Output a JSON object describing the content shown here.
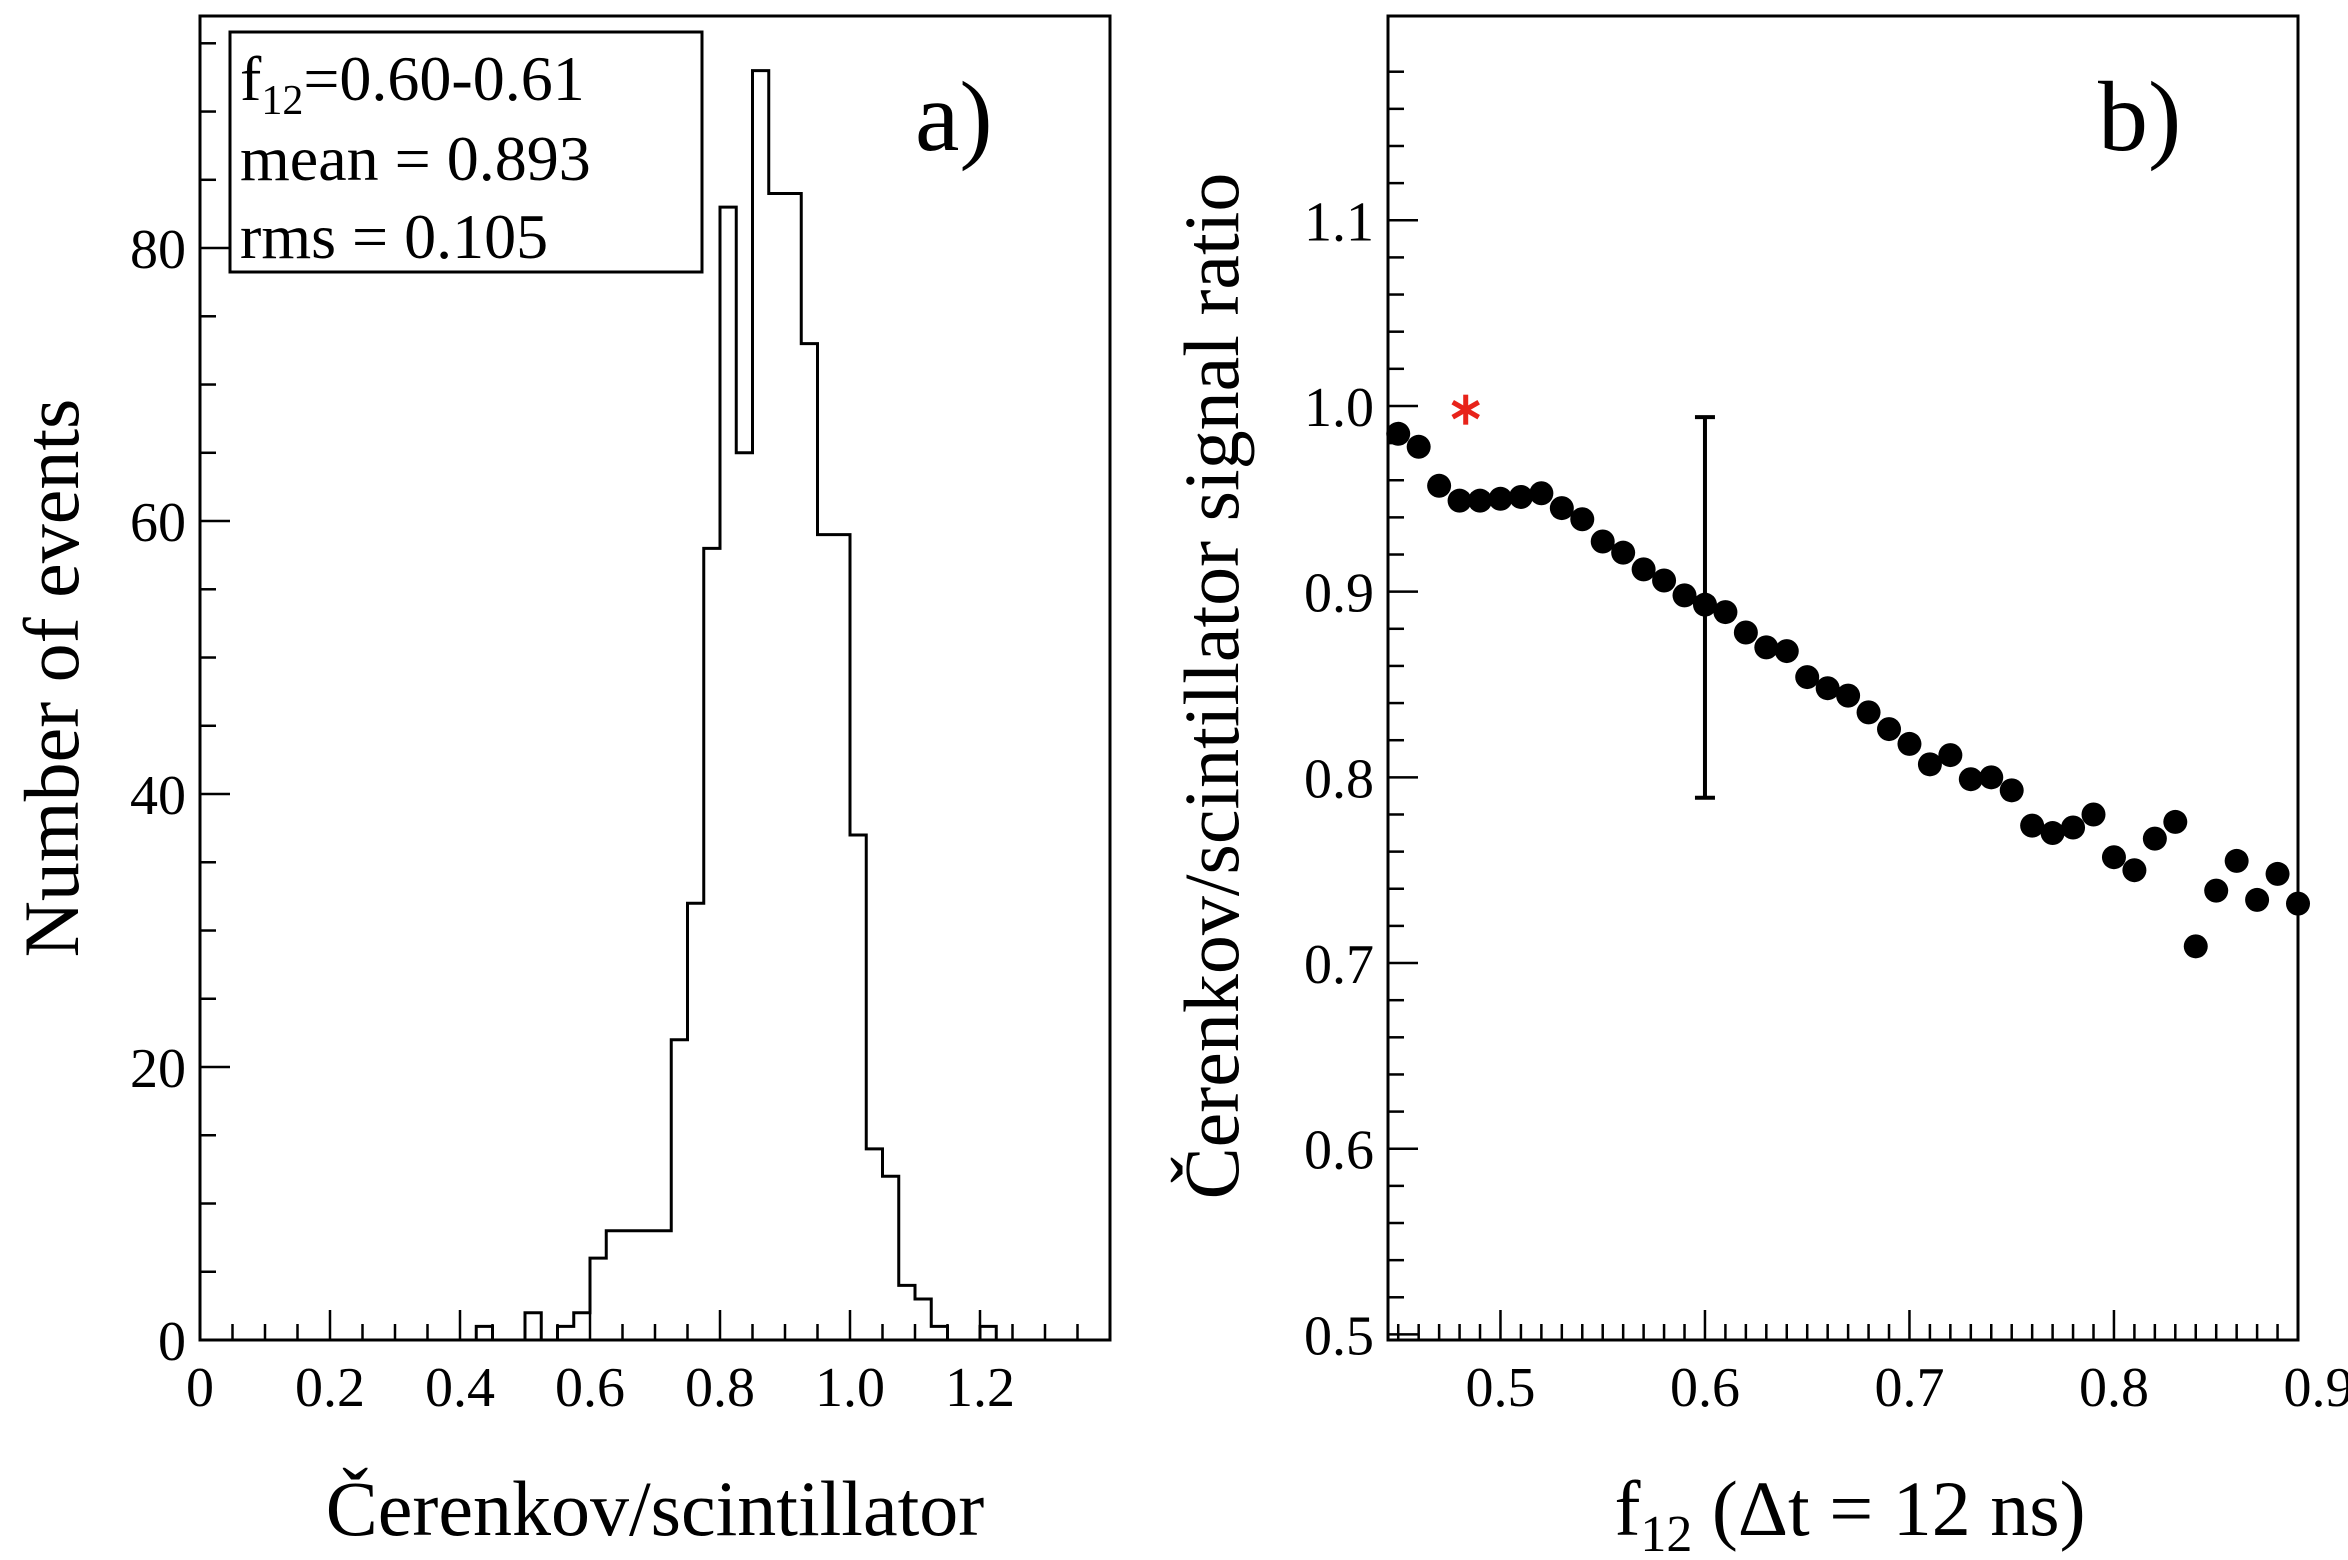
{
  "chart_data": [
    {
      "type": "histogram",
      "panel_label": "a)",
      "xlabel": "Čerenkov/scintillator",
      "ylabel": "Number of events",
      "xlim": [
        0,
        1.4
      ],
      "ylim": [
        0,
        97
      ],
      "xticks": [
        0,
        0.2,
        0.4,
        0.6,
        0.8,
        1.0,
        1.2
      ],
      "xtick_labels": [
        "0",
        "0.2",
        "0.4",
        "0.6",
        "0.8",
        "1.0",
        "1.2"
      ],
      "yticks": [
        0,
        20,
        40,
        60,
        80
      ],
      "ytick_labels": [
        "0",
        "20",
        "40",
        "60",
        "80"
      ],
      "bin_width": 0.025,
      "bins": [
        {
          "x0": 0.425,
          "count": 1
        },
        {
          "x0": 0.45,
          "count": 0
        },
        {
          "x0": 0.475,
          "count": 0
        },
        {
          "x0": 0.5,
          "count": 2
        },
        {
          "x0": 0.525,
          "count": 0
        },
        {
          "x0": 0.55,
          "count": 1
        },
        {
          "x0": 0.575,
          "count": 2
        },
        {
          "x0": 0.6,
          "count": 6
        },
        {
          "x0": 0.625,
          "count": 8
        },
        {
          "x0": 0.65,
          "count": 8
        },
        {
          "x0": 0.675,
          "count": 8
        },
        {
          "x0": 0.7,
          "count": 8
        },
        {
          "x0": 0.725,
          "count": 22
        },
        {
          "x0": 0.75,
          "count": 32
        },
        {
          "x0": 0.775,
          "count": 58
        },
        {
          "x0": 0.8,
          "count": 83
        },
        {
          "x0": 0.825,
          "count": 65
        },
        {
          "x0": 0.85,
          "count": 93
        },
        {
          "x0": 0.875,
          "count": 84
        },
        {
          "x0": 0.9,
          "count": 84
        },
        {
          "x0": 0.925,
          "count": 73
        },
        {
          "x0": 0.95,
          "count": 59
        },
        {
          "x0": 0.975,
          "count": 59
        },
        {
          "x0": 1.0,
          "count": 37
        },
        {
          "x0": 1.025,
          "count": 14
        },
        {
          "x0": 1.05,
          "count": 12
        },
        {
          "x0": 1.075,
          "count": 4
        },
        {
          "x0": 1.1,
          "count": 3
        },
        {
          "x0": 1.125,
          "count": 1
        },
        {
          "x0": 1.15,
          "count": 0
        },
        {
          "x0": 1.175,
          "count": 0
        },
        {
          "x0": 1.2,
          "count": 1
        }
      ],
      "stats_box": {
        "f_label": "f",
        "f_sub": "12",
        "f_value": "=0.60-0.61",
        "mean": "mean = 0.893",
        "rms": "rms = 0.105"
      }
    },
    {
      "type": "scatter",
      "panel_label": "b)",
      "ylabel": "Čerenkov/scintillator signal ratio",
      "xlabel_main": "f",
      "xlabel_sub": "12",
      "xlabel_rest": " (Δt = 12 ns)",
      "xlim": [
        0.445,
        0.89
      ],
      "ylim": [
        0.497,
        1.21
      ],
      "xticks": [
        0.5,
        0.6,
        0.7,
        0.8,
        0.9
      ],
      "xtick_labels": [
        "0.5",
        "0.6",
        "0.7",
        "0.8",
        "0.9"
      ],
      "yticks": [
        0.5,
        0.6,
        0.7,
        0.8,
        0.9,
        1.0,
        1.1
      ],
      "ytick_labels": [
        "0.5",
        "0.6",
        "0.7",
        "0.8",
        "0.9",
        "1.0",
        "1.1"
      ],
      "points": [
        {
          "x": 0.45,
          "y": 0.985
        },
        {
          "x": 0.46,
          "y": 0.978
        },
        {
          "x": 0.47,
          "y": 0.957
        },
        {
          "x": 0.48,
          "y": 0.949
        },
        {
          "x": 0.49,
          "y": 0.949
        },
        {
          "x": 0.5,
          "y": 0.95
        },
        {
          "x": 0.51,
          "y": 0.951
        },
        {
          "x": 0.52,
          "y": 0.953
        },
        {
          "x": 0.53,
          "y": 0.945
        },
        {
          "x": 0.54,
          "y": 0.939
        },
        {
          "x": 0.55,
          "y": 0.927
        },
        {
          "x": 0.56,
          "y": 0.921
        },
        {
          "x": 0.57,
          "y": 0.912
        },
        {
          "x": 0.58,
          "y": 0.906
        },
        {
          "x": 0.59,
          "y": 0.898
        },
        {
          "x": 0.6,
          "y": 0.893
        },
        {
          "x": 0.61,
          "y": 0.889
        },
        {
          "x": 0.62,
          "y": 0.878
        },
        {
          "x": 0.63,
          "y": 0.87
        },
        {
          "x": 0.64,
          "y": 0.868
        },
        {
          "x": 0.65,
          "y": 0.854
        },
        {
          "x": 0.66,
          "y": 0.848
        },
        {
          "x": 0.67,
          "y": 0.844
        },
        {
          "x": 0.68,
          "y": 0.835
        },
        {
          "x": 0.69,
          "y": 0.826
        },
        {
          "x": 0.7,
          "y": 0.818
        },
        {
          "x": 0.71,
          "y": 0.807
        },
        {
          "x": 0.72,
          "y": 0.812
        },
        {
          "x": 0.73,
          "y": 0.799
        },
        {
          "x": 0.74,
          "y": 0.8
        },
        {
          "x": 0.75,
          "y": 0.793
        },
        {
          "x": 0.76,
          "y": 0.774
        },
        {
          "x": 0.77,
          "y": 0.77
        },
        {
          "x": 0.78,
          "y": 0.773
        },
        {
          "x": 0.79,
          "y": 0.78
        },
        {
          "x": 0.8,
          "y": 0.757
        },
        {
          "x": 0.81,
          "y": 0.75
        },
        {
          "x": 0.82,
          "y": 0.767
        },
        {
          "x": 0.83,
          "y": 0.776
        },
        {
          "x": 0.84,
          "y": 0.709
        },
        {
          "x": 0.85,
          "y": 0.739
        },
        {
          "x": 0.86,
          "y": 0.755
        },
        {
          "x": 0.87,
          "y": 0.734
        },
        {
          "x": 0.88,
          "y": 0.748
        },
        {
          "x": 0.89,
          "y": 0.732
        }
      ],
      "error_bar": {
        "x": 0.6,
        "y": 0.893,
        "low": 0.789,
        "high": 0.994
      },
      "marker": {
        "x": 0.483,
        "y": 0.998,
        "symbol": "*",
        "color": "#e8231a"
      }
    }
  ]
}
